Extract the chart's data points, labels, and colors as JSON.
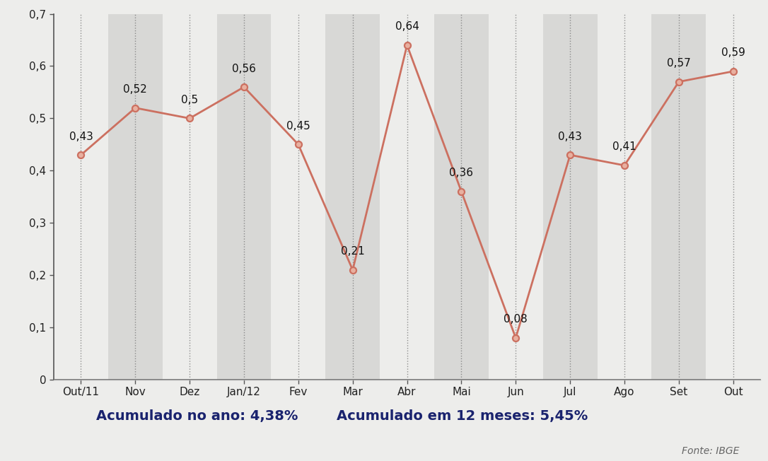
{
  "categories": [
    "Out/11",
    "Nov",
    "Dez",
    "Jan/12",
    "Fev",
    "Mar",
    "Abr",
    "Mai",
    "Jun",
    "Jul",
    "Ago",
    "Set",
    "Out"
  ],
  "values": [
    0.43,
    0.52,
    0.5,
    0.56,
    0.45,
    0.21,
    0.64,
    0.36,
    0.08,
    0.43,
    0.41,
    0.57,
    0.59
  ],
  "line_color": "#cc7060",
  "marker_edge_color": "#cc7060",
  "marker_face_color": "#e8b0a0",
  "bg_color_fig": "#ededeb",
  "bg_color_light": "#ededeb",
  "bg_color_dark": "#d8d8d6",
  "bg_color_footer": "#d0cfcd",
  "ylim": [
    0,
    0.7
  ],
  "yticks": [
    0,
    0.1,
    0.2,
    0.3,
    0.4,
    0.5,
    0.6,
    0.7
  ],
  "footer_text_left": "Acumulado no ano: 4,38%",
  "footer_text_right": "Acumulado em 12 meses: 5,45%",
  "footer_source": "Fonte: IBGE",
  "footer_text_color": "#1a236e",
  "footer_source_color": "#666666",
  "axis_color": "#555555",
  "tick_label_color": "#222222",
  "value_label_color": "#111111",
  "grid_color": "#777777",
  "label_fontsize": 11,
  "value_fontsize": 11,
  "footer_fontsize": 14,
  "source_fontsize": 10,
  "stripe_pattern": [
    1,
    0,
    1,
    0,
    1,
    0,
    1,
    0,
    1,
    0,
    1,
    0,
    1
  ]
}
